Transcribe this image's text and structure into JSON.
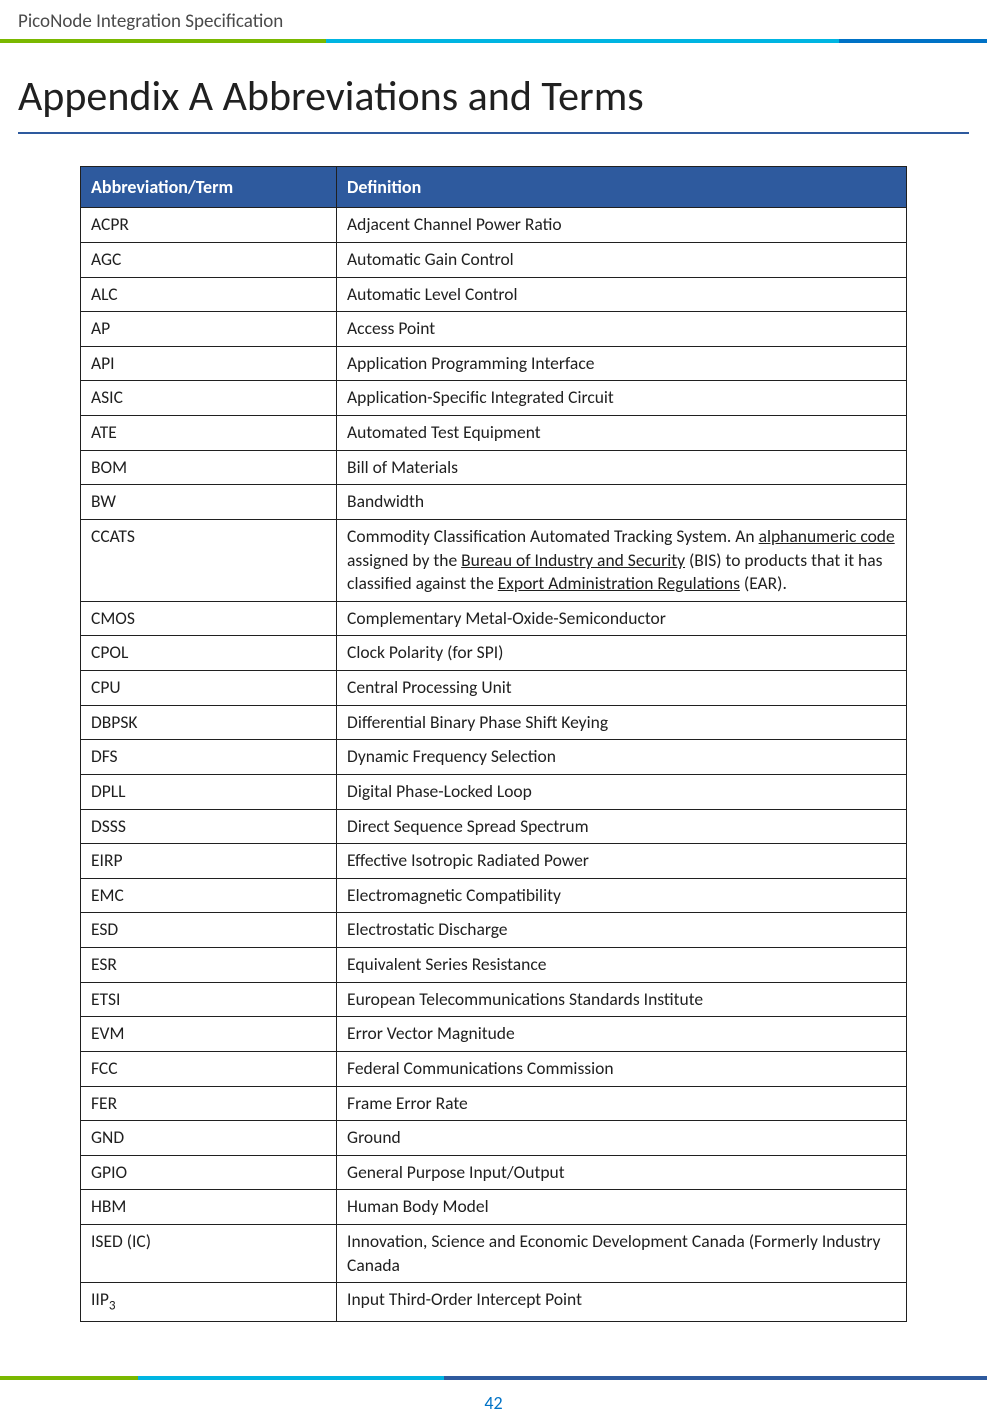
{
  "doc_header": "PicoNode Integration Specification",
  "heading": "Appendix A  Abbreviations and Terms",
  "table": {
    "col1": "Abbreviation/Term",
    "col2": "Definition",
    "rows": [
      {
        "term": "ACPR",
        "def": "Adjacent Channel Power Ratio"
      },
      {
        "term": "AGC",
        "def": "Automatic Gain Control"
      },
      {
        "term": "ALC",
        "def": "Automatic Level Control"
      },
      {
        "term": "AP",
        "def": "Access Point"
      },
      {
        "term": "API",
        "def": "Application Programming Interface"
      },
      {
        "term": "ASIC",
        "def": "Application-Specific Integrated Circuit"
      },
      {
        "term": "ATE",
        "def": "Automated Test Equipment"
      },
      {
        "term": "BOM",
        "def": "Bill of Materials"
      },
      {
        "term": "BW",
        "def": "Bandwidth"
      },
      {
        "term": "CCATS",
        "def_html": "Commodity Classification Automated Tracking System. An <span class=\"u\">alphanumeric code</span> assigned by the <span class=\"u\">Bureau of Industry and Security</span> (BIS) to products that it has classified against the <span class=\"u\">Export Administration Regulations</span> (EAR)."
      },
      {
        "term": "CMOS",
        "def": "Complementary Metal-Oxide-Semiconductor"
      },
      {
        "term": "CPOL",
        "def": "Clock Polarity (for SPI)"
      },
      {
        "term": "CPU",
        "def": "Central Processing Unit"
      },
      {
        "term": "DBPSK",
        "def": "Differential Binary Phase Shift Keying"
      },
      {
        "term": "DFS",
        "def": "Dynamic Frequency Selection"
      },
      {
        "term": "DPLL",
        "def": "Digital Phase-Locked Loop"
      },
      {
        "term": "DSSS",
        "def": "Direct Sequence Spread Spectrum"
      },
      {
        "term": "EIRP",
        "def": "Effective Isotropic Radiated Power"
      },
      {
        "term": "EMC",
        "def": "Electromagnetic Compatibility"
      },
      {
        "term": "ESD",
        "def": "Electrostatic Discharge"
      },
      {
        "term": "ESR",
        "def": "Equivalent Series Resistance"
      },
      {
        "term": "ETSI",
        "def": "European Telecommunications Standards Institute"
      },
      {
        "term": "EVM",
        "def": "Error Vector Magnitude"
      },
      {
        "term": "FCC",
        "def": "Federal Communications Commission"
      },
      {
        "term": "FER",
        "def": "Frame Error Rate"
      },
      {
        "term": "GND",
        "def": "Ground"
      },
      {
        "term": "GPIO",
        "def": "General Purpose Input/Output"
      },
      {
        "term": "HBM",
        "def": "Human Body Model"
      },
      {
        "term": "ISED  (IC)",
        "def": "Innovation, Science and Economic Development Canada (Formerly Industry Canada"
      },
      {
        "term_html": "IIP<span class=\"sub\">3</span>",
        "def": "Input Third-Order Intercept Point"
      }
    ]
  },
  "page_number": "42",
  "colors": {
    "header_blue": "#2e5a9e",
    "rule_green": "#7ab800",
    "rule_cyan": "#00b5e2",
    "rule_blue": "#0072c6"
  }
}
